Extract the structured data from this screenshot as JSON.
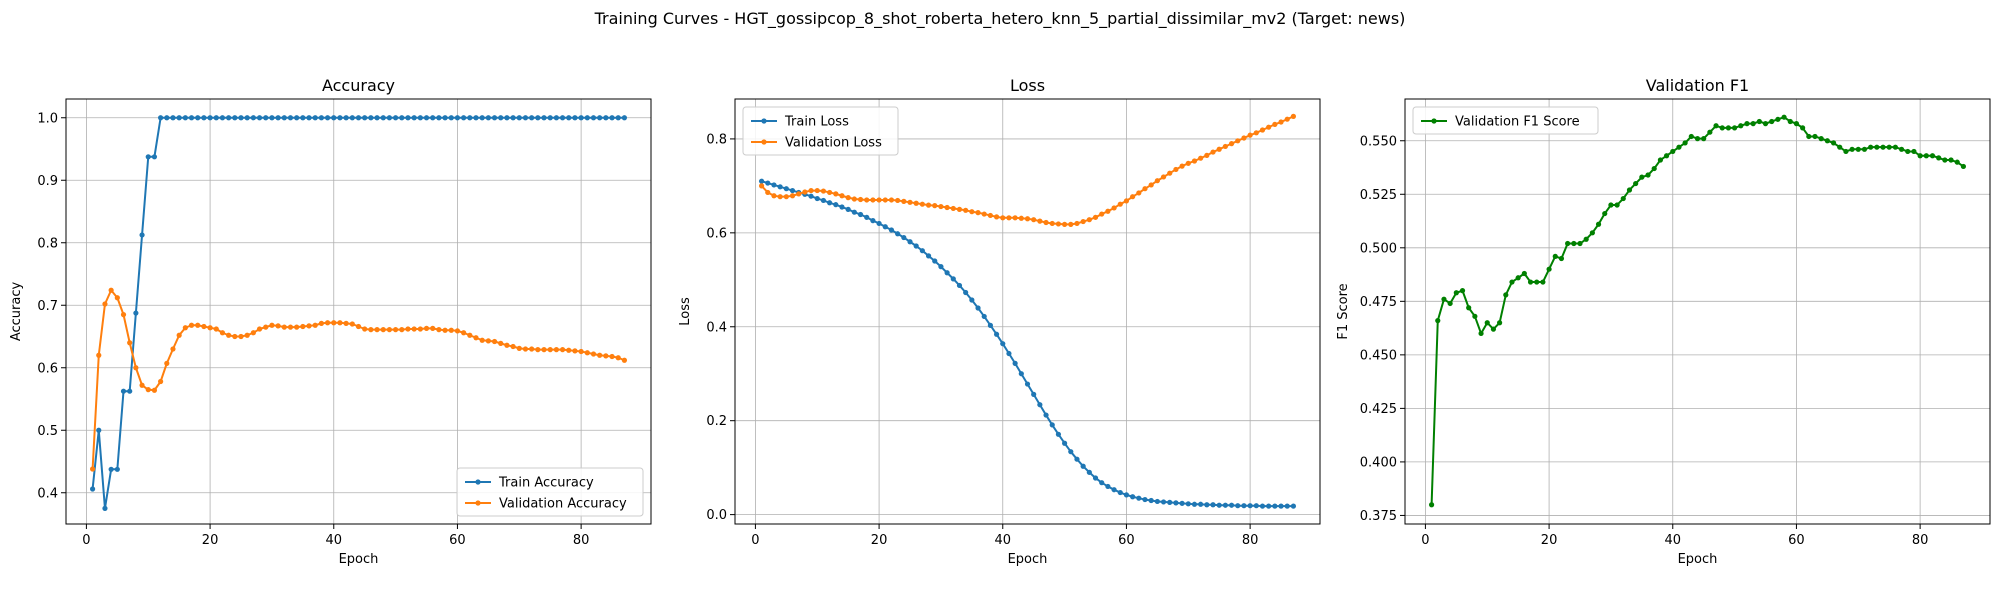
{
  "figure": {
    "suptitle": "Training Curves - HGT_gossipcop_8_shot_roberta_hetero_knn_5_partial_dissimilar_mv2 (Target: news)"
  },
  "chart_data": [
    {
      "type": "line",
      "title": "Accuracy",
      "xlabel": "Epoch",
      "ylabel": "Accuracy",
      "xlim": [
        -3.3,
        91.3
      ],
      "ylim": [
        0.35,
        1.03
      ],
      "xticks": [
        0,
        20,
        40,
        60,
        80
      ],
      "yticks": [
        0.4,
        0.5,
        0.6,
        0.7,
        0.8,
        0.9,
        1.0
      ],
      "ytick_decimals": 1,
      "grid": true,
      "legend": "lower-right",
      "x_start": 1,
      "x_end": 87,
      "series": [
        {
          "name": "Train Accuracy",
          "color": "#1f77b4",
          "values": [
            0.406,
            0.5,
            0.375,
            0.4375,
            0.4375,
            0.5625,
            0.5625,
            0.6875,
            0.8125,
            0.9375,
            0.9375,
            1.0,
            1.0,
            1.0,
            1.0,
            1.0,
            1.0,
            1.0,
            1.0,
            1.0,
            1.0,
            1.0,
            1.0,
            1.0,
            1.0,
            1.0,
            1.0,
            1.0,
            1.0,
            1.0,
            1.0,
            1.0,
            1.0,
            1.0,
            1.0,
            1.0,
            1.0,
            1.0,
            1.0,
            1.0,
            1.0,
            1.0,
            1.0,
            1.0,
            1.0,
            1.0,
            1.0,
            1.0,
            1.0,
            1.0,
            1.0,
            1.0,
            1.0,
            1.0,
            1.0,
            1.0,
            1.0,
            1.0,
            1.0,
            1.0,
            1.0,
            1.0,
            1.0,
            1.0,
            1.0,
            1.0,
            1.0,
            1.0,
            1.0,
            1.0,
            1.0,
            1.0,
            1.0,
            1.0,
            1.0,
            1.0,
            1.0,
            1.0,
            1.0,
            1.0,
            1.0,
            1.0,
            1.0,
            1.0,
            1.0,
            1.0,
            1.0
          ]
        },
        {
          "name": "Validation Accuracy",
          "color": "#ff7f0e",
          "values": [
            0.438,
            0.62,
            0.702,
            0.724,
            0.712,
            0.685,
            0.64,
            0.6,
            0.572,
            0.565,
            0.564,
            0.578,
            0.607,
            0.63,
            0.652,
            0.664,
            0.668,
            0.668,
            0.666,
            0.664,
            0.662,
            0.656,
            0.652,
            0.65,
            0.65,
            0.652,
            0.656,
            0.662,
            0.665,
            0.668,
            0.667,
            0.665,
            0.665,
            0.665,
            0.666,
            0.667,
            0.668,
            0.671,
            0.672,
            0.672,
            0.672,
            0.671,
            0.67,
            0.666,
            0.662,
            0.661,
            0.661,
            0.661,
            0.661,
            0.661,
            0.661,
            0.662,
            0.662,
            0.662,
            0.663,
            0.663,
            0.661,
            0.66,
            0.66,
            0.659,
            0.656,
            0.652,
            0.648,
            0.644,
            0.643,
            0.642,
            0.639,
            0.636,
            0.634,
            0.631,
            0.63,
            0.63,
            0.629,
            0.629,
            0.629,
            0.629,
            0.629,
            0.628,
            0.627,
            0.626,
            0.624,
            0.622,
            0.62,
            0.619,
            0.618,
            0.616,
            0.612
          ]
        }
      ]
    },
    {
      "type": "line",
      "title": "Loss",
      "xlabel": "Epoch",
      "ylabel": "Loss",
      "xlim": [
        -3.3,
        91.3
      ],
      "ylim": [
        -0.02,
        0.885
      ],
      "xticks": [
        0,
        20,
        40,
        60,
        80
      ],
      "yticks": [
        0.0,
        0.2,
        0.4,
        0.6,
        0.8
      ],
      "ytick_decimals": 1,
      "grid": true,
      "legend": "upper-left",
      "x_start": 1,
      "x_end": 87,
      "series": [
        {
          "name": "Train Loss",
          "color": "#1f77b4",
          "values": [
            0.71,
            0.706,
            0.702,
            0.698,
            0.694,
            0.69,
            0.686,
            0.682,
            0.678,
            0.673,
            0.669,
            0.664,
            0.66,
            0.655,
            0.65,
            0.644,
            0.639,
            0.633,
            0.626,
            0.62,
            0.613,
            0.606,
            0.598,
            0.59,
            0.581,
            0.572,
            0.562,
            0.551,
            0.54,
            0.528,
            0.515,
            0.502,
            0.488,
            0.473,
            0.457,
            0.44,
            0.422,
            0.403,
            0.384,
            0.364,
            0.343,
            0.322,
            0.3,
            0.278,
            0.256,
            0.234,
            0.212,
            0.191,
            0.171,
            0.152,
            0.134,
            0.118,
            0.103,
            0.09,
            0.078,
            0.068,
            0.06,
            0.053,
            0.047,
            0.042,
            0.038,
            0.035,
            0.032,
            0.03,
            0.028,
            0.027,
            0.026,
            0.025,
            0.024,
            0.023,
            0.022,
            0.022,
            0.021,
            0.021,
            0.02,
            0.02,
            0.02,
            0.019,
            0.019,
            0.019,
            0.019,
            0.018,
            0.018,
            0.018,
            0.018,
            0.018,
            0.018
          ]
        },
        {
          "name": "Validation Loss",
          "color": "#ff7f0e",
          "values": [
            0.7,
            0.686,
            0.679,
            0.677,
            0.677,
            0.679,
            0.683,
            0.687,
            0.69,
            0.69,
            0.689,
            0.686,
            0.683,
            0.679,
            0.675,
            0.672,
            0.671,
            0.67,
            0.67,
            0.67,
            0.67,
            0.67,
            0.669,
            0.667,
            0.665,
            0.663,
            0.661,
            0.659,
            0.658,
            0.656,
            0.654,
            0.652,
            0.65,
            0.648,
            0.645,
            0.643,
            0.64,
            0.637,
            0.634,
            0.632,
            0.632,
            0.632,
            0.631,
            0.63,
            0.628,
            0.625,
            0.622,
            0.62,
            0.619,
            0.618,
            0.618,
            0.62,
            0.624,
            0.628,
            0.633,
            0.64,
            0.646,
            0.653,
            0.661,
            0.668,
            0.677,
            0.685,
            0.694,
            0.702,
            0.711,
            0.719,
            0.727,
            0.735,
            0.742,
            0.748,
            0.753,
            0.759,
            0.765,
            0.772,
            0.778,
            0.784,
            0.79,
            0.796,
            0.802,
            0.808,
            0.813,
            0.819,
            0.825,
            0.831,
            0.836,
            0.842,
            0.848
          ]
        }
      ]
    },
    {
      "type": "line",
      "title": "Validation F1",
      "xlabel": "Epoch",
      "ylabel": "F1 Score",
      "xlim": [
        -3.3,
        91.3
      ],
      "ylim": [
        0.371,
        0.5695
      ],
      "xticks": [
        0,
        20,
        40,
        60,
        80
      ],
      "yticks": [
        0.375,
        0.4,
        0.425,
        0.45,
        0.475,
        0.5,
        0.525,
        0.55
      ],
      "ytick_decimals": 3,
      "grid": true,
      "legend": "upper-left",
      "x_start": 1,
      "x_end": 87,
      "series": [
        {
          "name": "Validation F1 Score",
          "color": "#008000",
          "values": [
            0.38,
            0.466,
            0.476,
            0.474,
            0.479,
            0.48,
            0.472,
            0.468,
            0.46,
            0.465,
            0.462,
            0.465,
            0.478,
            0.484,
            0.486,
            0.488,
            0.484,
            0.484,
            0.484,
            0.49,
            0.496,
            0.495,
            0.502,
            0.502,
            0.502,
            0.504,
            0.507,
            0.511,
            0.516,
            0.52,
            0.52,
            0.523,
            0.527,
            0.53,
            0.533,
            0.534,
            0.537,
            0.541,
            0.543,
            0.545,
            0.547,
            0.549,
            0.552,
            0.551,
            0.551,
            0.554,
            0.557,
            0.556,
            0.556,
            0.556,
            0.557,
            0.558,
            0.558,
            0.559,
            0.558,
            0.559,
            0.56,
            0.561,
            0.559,
            0.558,
            0.556,
            0.552,
            0.552,
            0.551,
            0.55,
            0.549,
            0.547,
            0.545,
            0.546,
            0.546,
            0.546,
            0.547,
            0.547,
            0.547,
            0.547,
            0.547,
            0.546,
            0.545,
            0.545,
            0.543,
            0.543,
            0.543,
            0.542,
            0.541,
            0.541,
            0.54,
            0.538
          ]
        }
      ]
    }
  ]
}
